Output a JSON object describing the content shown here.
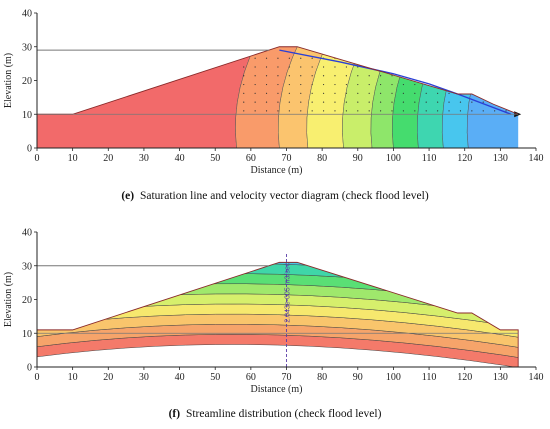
{
  "chart_data": [
    {
      "type": "contour",
      "caption_label": "(e)",
      "caption_text": "Saturation line and velocity vector diagram (check flood level)",
      "xlabel": "Distance (m)",
      "ylabel": "Elevation (m)",
      "xlim": [
        0,
        140
      ],
      "ylim": [
        0,
        40
      ],
      "xticks": [
        0,
        10,
        20,
        30,
        40,
        50,
        60,
        70,
        80,
        90,
        100,
        110,
        120,
        130,
        140
      ],
      "yticks": [
        0,
        10,
        20,
        30,
        40
      ],
      "upstream_water_level": 29,
      "downstream_water_level": 10,
      "dam_profile": [
        [
          0,
          10
        ],
        [
          10,
          10
        ],
        [
          68,
          30
        ],
        [
          73,
          30
        ],
        [
          118,
          16
        ],
        [
          122,
          16
        ],
        [
          128,
          13
        ],
        [
          135,
          10
        ]
      ],
      "phreatic_line": [
        [
          68,
          29
        ],
        [
          85,
          25.5
        ],
        [
          100,
          22
        ],
        [
          110,
          19
        ],
        [
          118,
          16
        ],
        [
          128,
          12
        ],
        [
          133,
          10
        ]
      ],
      "colors": [
        "#f26a6a",
        "#f99b6a",
        "#fbc46e",
        "#f8ef70",
        "#c9ee6a",
        "#8ee66a",
        "#45dc6e",
        "#3ed6b0",
        "#48c6ee",
        "#5aaef6"
      ]
    },
    {
      "type": "contour",
      "caption_label": "(f)",
      "caption_text": "Streamline distribution (check flood level)",
      "xlabel": "Distance (m)",
      "ylabel": "Elevation (m)",
      "xlim": [
        0,
        140
      ],
      "ylim": [
        0,
        40
      ],
      "xticks": [
        0,
        10,
        20,
        30,
        40,
        50,
        60,
        70,
        80,
        90,
        100,
        110,
        120,
        130,
        140
      ],
      "yticks": [
        0,
        10,
        20,
        30,
        40
      ],
      "upstream_water_level": 30,
      "downstream_water_level": 10,
      "dam_profile": [
        [
          0,
          11
        ],
        [
          10,
          11
        ],
        [
          68,
          31
        ],
        [
          73,
          31
        ],
        [
          118,
          16
        ],
        [
          122,
          16
        ],
        [
          130,
          11
        ],
        [
          135,
          11
        ],
        [
          135,
          0
        ],
        [
          0,
          0
        ]
      ],
      "flux_section_x": 70,
      "flux_label": "2.043e-005 m3/sec",
      "colors": [
        "#f47a6a",
        "#f6a46a",
        "#f9c56c",
        "#f6e86e",
        "#d6ef6c",
        "#9fe86c",
        "#5adf75",
        "#3fd6a8",
        "#49c6e6",
        "#5fb1f2"
      ]
    }
  ]
}
